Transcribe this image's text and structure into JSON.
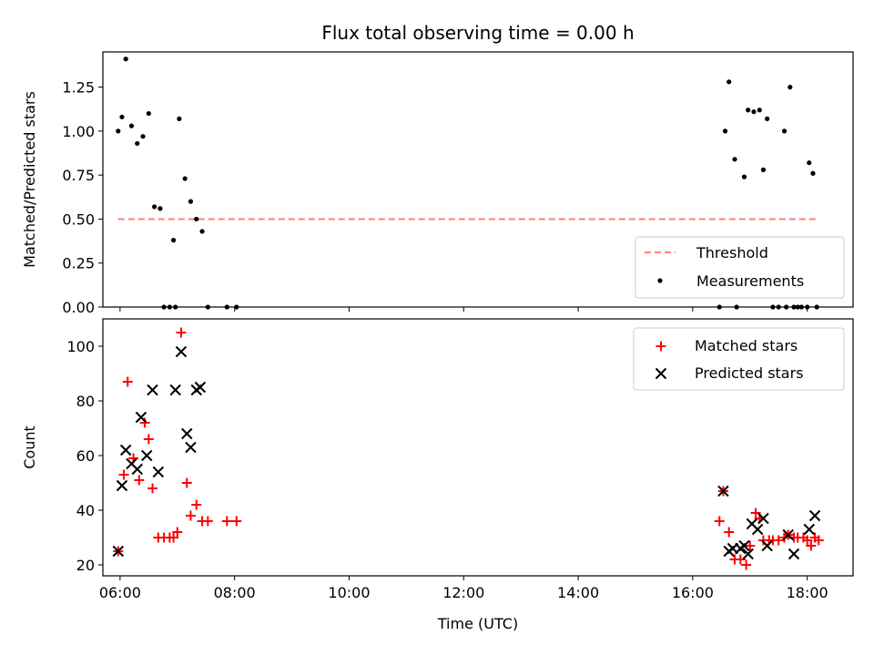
{
  "figure_title": "Flux total observing time = 0.00 h",
  "colors": {
    "threshold": "#ff7f7f",
    "measurements": "#000000",
    "matched": "#ff0000",
    "predicted": "#000000",
    "legend_border": "#cccccc"
  },
  "chart_data": [
    {
      "type": "scatter",
      "title": "Flux total observing time = 0.00 h",
      "xlabel": "",
      "ylabel": "Matched/Predicted stars",
      "xlim": [
        "05:42",
        "18:48"
      ],
      "ylim": [
        0,
        1.45
      ],
      "y_ticks": [
        "0.00",
        "0.25",
        "0.50",
        "0.75",
        "1.00",
        "1.25"
      ],
      "x_ticks": [
        "06:00",
        "08:00",
        "10:00",
        "12:00",
        "14:00",
        "16:00",
        "18:00"
      ],
      "legend": {
        "placement": "lower-right",
        "entries": [
          "Threshold",
          "Measurements"
        ]
      },
      "series": [
        {
          "name": "Threshold",
          "kind": "dashed-line",
          "points": [
            [
              "05:58",
              0.5
            ],
            [
              "18:12",
              0.5
            ]
          ]
        },
        {
          "name": "Measurements",
          "kind": "dot",
          "points": [
            [
              "05:58",
              1.0
            ],
            [
              "06:02",
              1.08
            ],
            [
              "06:06",
              1.41
            ],
            [
              "06:12",
              1.03
            ],
            [
              "06:18",
              0.93
            ],
            [
              "06:24",
              0.97
            ],
            [
              "06:30",
              1.1
            ],
            [
              "06:36",
              0.57
            ],
            [
              "06:42",
              0.56
            ],
            [
              "06:46",
              0.0
            ],
            [
              "06:52",
              0.0
            ],
            [
              "06:56",
              0.38
            ],
            [
              "06:58",
              0.0
            ],
            [
              "07:02",
              1.07
            ],
            [
              "07:08",
              0.73
            ],
            [
              "07:14",
              0.6
            ],
            [
              "07:20",
              0.5
            ],
            [
              "07:26",
              0.43
            ],
            [
              "07:32",
              0.0
            ],
            [
              "07:52",
              0.0
            ],
            [
              "08:02",
              0.0
            ],
            [
              "16:28",
              0.0
            ],
            [
              "16:34",
              1.0
            ],
            [
              "16:38",
              1.28
            ],
            [
              "16:44",
              0.84
            ],
            [
              "16:46",
              0.0
            ],
            [
              "16:54",
              0.74
            ],
            [
              "16:58",
              1.12
            ],
            [
              "17:04",
              1.11
            ],
            [
              "17:10",
              1.12
            ],
            [
              "17:14",
              0.78
            ],
            [
              "17:18",
              1.07
            ],
            [
              "17:24",
              0.0
            ],
            [
              "17:30",
              0.0
            ],
            [
              "17:36",
              1.0
            ],
            [
              "17:38",
              0.0
            ],
            [
              "17:42",
              1.25
            ],
            [
              "17:46",
              0.0
            ],
            [
              "17:50",
              0.0
            ],
            [
              "17:54",
              0.0
            ],
            [
              "18:00",
              0.0
            ],
            [
              "18:02",
              0.82
            ],
            [
              "18:06",
              0.76
            ],
            [
              "18:10",
              0.0
            ]
          ]
        }
      ]
    },
    {
      "type": "scatter",
      "title": "",
      "xlabel": "Time (UTC)",
      "ylabel": "Count",
      "xlim": [
        "05:42",
        "18:48"
      ],
      "ylim": [
        16,
        110
      ],
      "y_ticks": [
        "20",
        "40",
        "60",
        "80",
        "100"
      ],
      "x_ticks": [
        "06:00",
        "08:00",
        "10:00",
        "12:00",
        "14:00",
        "16:00",
        "18:00"
      ],
      "legend": {
        "placement": "upper-right",
        "entries": [
          "Matched stars",
          "Predicted stars"
        ]
      },
      "series": [
        {
          "name": "Matched stars",
          "kind": "plus",
          "points": [
            [
              "05:58",
              25
            ],
            [
              "06:04",
              53
            ],
            [
              "06:08",
              87
            ],
            [
              "06:14",
              59
            ],
            [
              "06:20",
              51
            ],
            [
              "06:26",
              72
            ],
            [
              "06:30",
              66
            ],
            [
              "06:34",
              48
            ],
            [
              "06:40",
              30
            ],
            [
              "06:46",
              30
            ],
            [
              "06:52",
              30
            ],
            [
              "06:56",
              30
            ],
            [
              "07:00",
              32
            ],
            [
              "07:04",
              105
            ],
            [
              "07:10",
              50
            ],
            [
              "07:14",
              38
            ],
            [
              "07:20",
              42
            ],
            [
              "07:26",
              36
            ],
            [
              "07:32",
              36
            ],
            [
              "07:52",
              36
            ],
            [
              "08:02",
              36
            ],
            [
              "16:28",
              36
            ],
            [
              "16:32",
              47
            ],
            [
              "16:38",
              32
            ],
            [
              "16:44",
              22
            ],
            [
              "16:50",
              22
            ],
            [
              "16:56",
              20
            ],
            [
              "17:00",
              27
            ],
            [
              "17:06",
              39
            ],
            [
              "17:10",
              37
            ],
            [
              "17:14",
              29
            ],
            [
              "17:20",
              29
            ],
            [
              "17:24",
              29
            ],
            [
              "17:30",
              29
            ],
            [
              "17:36",
              30
            ],
            [
              "17:40",
              31
            ],
            [
              "17:46",
              30
            ],
            [
              "17:50",
              30
            ],
            [
              "17:56",
              30
            ],
            [
              "18:00",
              29
            ],
            [
              "18:04",
              27
            ],
            [
              "18:08",
              30
            ],
            [
              "18:12",
              29
            ]
          ]
        },
        {
          "name": "Predicted stars",
          "kind": "cross",
          "points": [
            [
              "05:58",
              25
            ],
            [
              "06:02",
              49
            ],
            [
              "06:06",
              62
            ],
            [
              "06:12",
              57
            ],
            [
              "06:18",
              55
            ],
            [
              "06:22",
              74
            ],
            [
              "06:28",
              60
            ],
            [
              "06:34",
              84
            ],
            [
              "06:40",
              54
            ],
            [
              "06:58",
              84
            ],
            [
              "07:04",
              98
            ],
            [
              "07:10",
              68
            ],
            [
              "07:14",
              63
            ],
            [
              "07:20",
              84
            ],
            [
              "07:24",
              85
            ],
            [
              "16:32",
              47
            ],
            [
              "16:38",
              25
            ],
            [
              "16:42",
              26
            ],
            [
              "16:50",
              26
            ],
            [
              "16:54",
              27
            ],
            [
              "16:58",
              24
            ],
            [
              "17:02",
              35
            ],
            [
              "17:08",
              33
            ],
            [
              "17:14",
              37
            ],
            [
              "17:18",
              27
            ],
            [
              "17:40",
              31
            ],
            [
              "17:46",
              24
            ],
            [
              "18:02",
              33
            ],
            [
              "18:08",
              38
            ]
          ]
        }
      ]
    }
  ]
}
